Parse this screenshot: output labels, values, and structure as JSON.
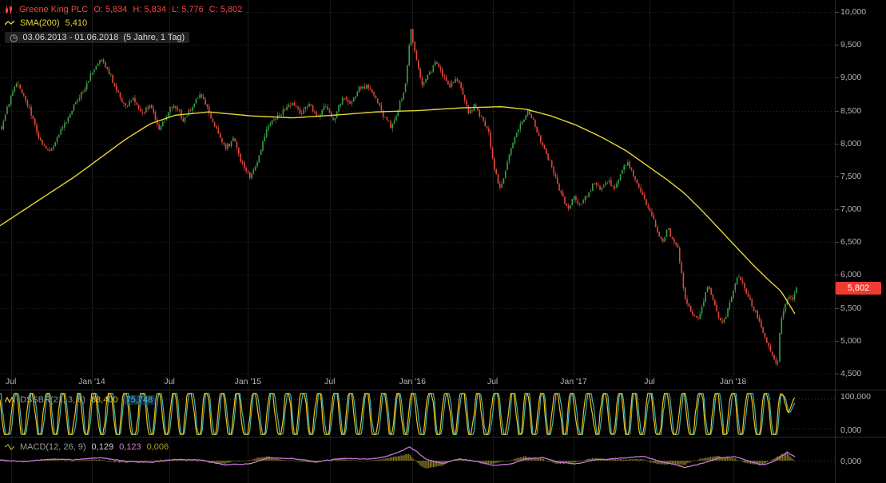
{
  "legends": {
    "symbol_row": {
      "symbol": "Greene King PLC",
      "open": "O: 5,834",
      "high": "H: 5,834",
      "low": "L: 5,776",
      "close": "C: 5,802"
    },
    "sma_row": {
      "name": "SMA(200)",
      "value": "5,410"
    },
    "range_row": {
      "dates": "03.06.2013 - 01.06.2018",
      "detail": "(5 Jahre, 1 Tag)"
    },
    "dssbr_row": {
      "name": "DSSBR(21, 3, 8)",
      "fast": "88,400",
      "slow": "75,748"
    },
    "macd_row": {
      "name": "MACD(12, 26, 9)",
      "macd": "0,129",
      "signal": "0,123",
      "hist": "0,006"
    },
    "last_price": "5,802"
  },
  "colors": {
    "up": "#36a046",
    "down": "#e2483d",
    "sma": "#e8d535",
    "dssbr_fast": "#f2c31b",
    "dssbr_slow": "#45b5ad",
    "macd_line": "#c678d8",
    "macd_hist": "#7f7420",
    "price_tag_bg": "#ef3b30",
    "axis_text": "#b4b4b4"
  },
  "chart_data": [
    {
      "type": "candlestick",
      "title": "Greene King PLC",
      "timeframe": "1 Tag",
      "date_range": "03.06.2013 - 01.06.2018",
      "last_ohlc": {
        "open": 5834,
        "high": 5834,
        "low": 5776,
        "close": 5802
      },
      "sma200_last": 5410,
      "t_last": 0.952,
      "ylim": [
        4400,
        10100
      ],
      "y_ticks": [
        {
          "label": "10,000",
          "value": 10000
        },
        {
          "label": "9,500",
          "value": 9500
        },
        {
          "label": "9,000",
          "value": 9000
        },
        {
          "label": "8,500",
          "value": 8500
        },
        {
          "label": "8,000",
          "value": 8000
        },
        {
          "label": "7,500",
          "value": 7500
        },
        {
          "label": "7,000",
          "value": 7000
        },
        {
          "label": "6,500",
          "value": 6500
        },
        {
          "label": "6,000",
          "value": 6000
        },
        {
          "label": "5,500",
          "value": 5500
        },
        {
          "label": "5,000",
          "value": 5000
        },
        {
          "label": "4,500",
          "value": 4500
        }
      ],
      "x_ticks": [
        {
          "label": "Jul",
          "t": 0.013
        },
        {
          "label": "Jan '14",
          "t": 0.11
        },
        {
          "label": "Jul",
          "t": 0.203
        },
        {
          "label": "Jan '15",
          "t": 0.297
        },
        {
          "label": "Jul",
          "t": 0.395
        },
        {
          "label": "Jan '16",
          "t": 0.494
        },
        {
          "label": "Jul",
          "t": 0.59
        },
        {
          "label": "Jan '17",
          "t": 0.687
        },
        {
          "label": "Jul",
          "t": 0.778
        },
        {
          "label": "Jan '18",
          "t": 0.878
        }
      ],
      "close_anchors": [
        [
          0.0,
          8250
        ],
        [
          0.008,
          8600
        ],
        [
          0.018,
          8950
        ],
        [
          0.028,
          8700
        ],
        [
          0.038,
          8350
        ],
        [
          0.048,
          8000
        ],
        [
          0.058,
          7850
        ],
        [
          0.068,
          8150
        ],
        [
          0.078,
          8350
        ],
        [
          0.088,
          8600
        ],
        [
          0.098,
          8800
        ],
        [
          0.108,
          9050
        ],
        [
          0.118,
          9300
        ],
        [
          0.128,
          9100
        ],
        [
          0.138,
          8800
        ],
        [
          0.148,
          8550
        ],
        [
          0.158,
          8700
        ],
        [
          0.168,
          8450
        ],
        [
          0.178,
          8600
        ],
        [
          0.188,
          8200
        ],
        [
          0.198,
          8450
        ],
        [
          0.208,
          8600
        ],
        [
          0.218,
          8350
        ],
        [
          0.228,
          8550
        ],
        [
          0.238,
          8750
        ],
        [
          0.248,
          8500
        ],
        [
          0.258,
          8200
        ],
        [
          0.268,
          7900
        ],
        [
          0.278,
          8100
        ],
        [
          0.288,
          7700
        ],
        [
          0.298,
          7450
        ],
        [
          0.308,
          7800
        ],
        [
          0.318,
          8250
        ],
        [
          0.328,
          8350
        ],
        [
          0.338,
          8500
        ],
        [
          0.348,
          8650
        ],
        [
          0.358,
          8450
        ],
        [
          0.368,
          8600
        ],
        [
          0.378,
          8400
        ],
        [
          0.388,
          8550
        ],
        [
          0.398,
          8350
        ],
        [
          0.408,
          8700
        ],
        [
          0.418,
          8600
        ],
        [
          0.428,
          8850
        ],
        [
          0.438,
          8900
        ],
        [
          0.448,
          8700
        ],
        [
          0.458,
          8400
        ],
        [
          0.468,
          8250
        ],
        [
          0.476,
          8550
        ],
        [
          0.484,
          8900
        ],
        [
          0.49,
          9750
        ],
        [
          0.496,
          9350
        ],
        [
          0.504,
          8850
        ],
        [
          0.512,
          9050
        ],
        [
          0.52,
          9250
        ],
        [
          0.528,
          9050
        ],
        [
          0.536,
          8850
        ],
        [
          0.544,
          9000
        ],
        [
          0.552,
          8800
        ],
        [
          0.56,
          8450
        ],
        [
          0.568,
          8600
        ],
        [
          0.576,
          8350
        ],
        [
          0.584,
          8150
        ],
        [
          0.59,
          7600
        ],
        [
          0.598,
          7300
        ],
        [
          0.606,
          7750
        ],
        [
          0.614,
          8100
        ],
        [
          0.622,
          8300
        ],
        [
          0.63,
          8500
        ],
        [
          0.638,
          8300
        ],
        [
          0.646,
          8050
        ],
        [
          0.654,
          7800
        ],
        [
          0.662,
          7550
        ],
        [
          0.67,
          7250
        ],
        [
          0.678,
          7000
        ],
        [
          0.686,
          7200
        ],
        [
          0.694,
          7050
        ],
        [
          0.702,
          7250
        ],
        [
          0.71,
          7400
        ],
        [
          0.718,
          7300
        ],
        [
          0.726,
          7450
        ],
        [
          0.734,
          7300
        ],
        [
          0.742,
          7600
        ],
        [
          0.75,
          7700
        ],
        [
          0.758,
          7450
        ],
        [
          0.766,
          7250
        ],
        [
          0.774,
          7050
        ],
        [
          0.78,
          6900
        ],
        [
          0.786,
          6650
        ],
        [
          0.792,
          6500
        ],
        [
          0.798,
          6700
        ],
        [
          0.804,
          6550
        ],
        [
          0.81,
          6400
        ],
        [
          0.814,
          6100
        ],
        [
          0.818,
          5650
        ],
        [
          0.823,
          5550
        ],
        [
          0.828,
          5400
        ],
        [
          0.834,
          5300
        ],
        [
          0.84,
          5600
        ],
        [
          0.846,
          5850
        ],
        [
          0.852,
          5600
        ],
        [
          0.858,
          5400
        ],
        [
          0.864,
          5250
        ],
        [
          0.87,
          5500
        ],
        [
          0.876,
          5750
        ],
        [
          0.882,
          6050
        ],
        [
          0.888,
          5850
        ],
        [
          0.894,
          5650
        ],
        [
          0.9,
          5500
        ],
        [
          0.906,
          5350
        ],
        [
          0.912,
          5150
        ],
        [
          0.918,
          4950
        ],
        [
          0.924,
          4750
        ],
        [
          0.929,
          4580
        ],
        [
          0.933,
          5250
        ],
        [
          0.938,
          5550
        ],
        [
          0.943,
          5700
        ],
        [
          0.948,
          5640
        ],
        [
          0.952,
          5802
        ]
      ],
      "sma_anchors": [
        [
          0.0,
          6750
        ],
        [
          0.03,
          7000
        ],
        [
          0.06,
          7250
        ],
        [
          0.09,
          7500
        ],
        [
          0.12,
          7780
        ],
        [
          0.15,
          8060
        ],
        [
          0.18,
          8300
        ],
        [
          0.21,
          8430
        ],
        [
          0.25,
          8480
        ],
        [
          0.3,
          8420
        ],
        [
          0.35,
          8390
        ],
        [
          0.4,
          8430
        ],
        [
          0.45,
          8480
        ],
        [
          0.5,
          8500
        ],
        [
          0.55,
          8540
        ],
        [
          0.6,
          8560
        ],
        [
          0.63,
          8520
        ],
        [
          0.66,
          8420
        ],
        [
          0.69,
          8280
        ],
        [
          0.72,
          8100
        ],
        [
          0.75,
          7890
        ],
        [
          0.78,
          7620
        ],
        [
          0.8,
          7440
        ],
        [
          0.82,
          7240
        ],
        [
          0.84,
          6990
        ],
        [
          0.86,
          6720
        ],
        [
          0.88,
          6450
        ],
        [
          0.9,
          6180
        ],
        [
          0.92,
          5930
        ],
        [
          0.935,
          5760
        ],
        [
          0.945,
          5560
        ],
        [
          0.952,
          5410
        ]
      ]
    },
    {
      "type": "line",
      "name": "DSSBR(21, 3, 8)",
      "ylim": [
        0,
        100
      ],
      "y_tick_labels": [
        {
          "label": "100,000",
          "value": 100
        },
        {
          "label": "0,000",
          "value": 0
        }
      ],
      "last_fast": 88.4,
      "last_slow": 75.748,
      "approx_cycles": 48,
      "overbought": 85,
      "oversold": 15
    },
    {
      "type": "line",
      "name": "MACD(12, 26, 9)",
      "ylim": [
        -0.6,
        0.6
      ],
      "y_tick_labels": [
        {
          "label": "0,000",
          "value": 0
        }
      ],
      "last_macd": 0.129,
      "last_signal": 0.123,
      "last_hist": 0.006,
      "anchors": [
        [
          0.0,
          0.02
        ],
        [
          0.03,
          -0.03
        ],
        [
          0.06,
          0.05
        ],
        [
          0.09,
          0.03
        ],
        [
          0.12,
          0.1
        ],
        [
          0.15,
          -0.02
        ],
        [
          0.18,
          -0.06
        ],
        [
          0.21,
          0.04
        ],
        [
          0.24,
          0.02
        ],
        [
          0.27,
          -0.14
        ],
        [
          0.3,
          -0.1
        ],
        [
          0.32,
          0.09
        ],
        [
          0.35,
          0.07
        ],
        [
          0.38,
          -0.04
        ],
        [
          0.41,
          0.08
        ],
        [
          0.44,
          0.05
        ],
        [
          0.46,
          0.12
        ],
        [
          0.48,
          0.3
        ],
        [
          0.49,
          0.46
        ],
        [
          0.5,
          0.28
        ],
        [
          0.51,
          0.05
        ],
        [
          0.53,
          -0.1
        ],
        [
          0.55,
          0.06
        ],
        [
          0.57,
          -0.02
        ],
        [
          0.59,
          -0.16
        ],
        [
          0.61,
          -0.12
        ],
        [
          0.63,
          0.06
        ],
        [
          0.65,
          0.1
        ],
        [
          0.67,
          -0.06
        ],
        [
          0.69,
          -0.11
        ],
        [
          0.71,
          0.02
        ],
        [
          0.73,
          0.05
        ],
        [
          0.75,
          0.1
        ],
        [
          0.77,
          0.15
        ],
        [
          0.79,
          -0.02
        ],
        [
          0.81,
          -0.14
        ],
        [
          0.82,
          -0.22
        ],
        [
          0.84,
          -0.1
        ],
        [
          0.86,
          0.08
        ],
        [
          0.88,
          0.13
        ],
        [
          0.9,
          -0.04
        ],
        [
          0.912,
          -0.14
        ],
        [
          0.925,
          -0.05
        ],
        [
          0.935,
          0.12
        ],
        [
          0.943,
          0.28
        ],
        [
          0.949,
          0.18
        ],
        [
          0.952,
          0.129
        ]
      ]
    }
  ]
}
